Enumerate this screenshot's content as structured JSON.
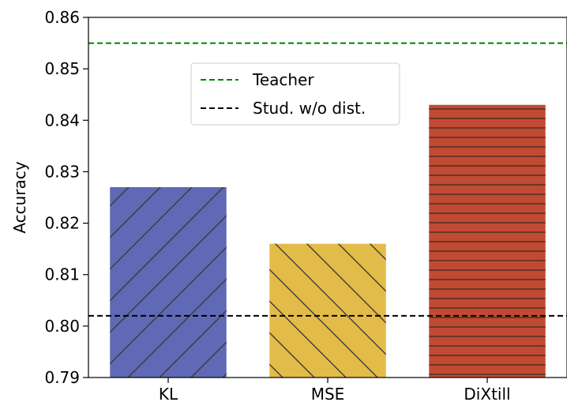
{
  "chart_data": {
    "type": "bar",
    "title": "",
    "xlabel": "",
    "ylabel": "Accuracy",
    "ylim": [
      0.79,
      0.86
    ],
    "yticks": [
      "0.79",
      "0.80",
      "0.81",
      "0.82",
      "0.83",
      "0.84",
      "0.85",
      "0.86"
    ],
    "categories": [
      "KL",
      "MSE",
      "DiXtill"
    ],
    "values": [
      0.827,
      0.816,
      0.843
    ],
    "bar_colors": [
      "#5f69b5",
      "#e3bb48",
      "#c14a33"
    ],
    "bar_hatches": [
      "forward-diagonal",
      "back-diagonal",
      "horizontal"
    ],
    "reference_lines": [
      {
        "name": "Teacher",
        "value": 0.855,
        "color": "#008000",
        "style": "dashed"
      },
      {
        "name": "Stud. w/o dist.",
        "value": 0.802,
        "color": "#000000",
        "style": "dashed"
      }
    ],
    "legend_position": "upper-center",
    "grid": false
  }
}
